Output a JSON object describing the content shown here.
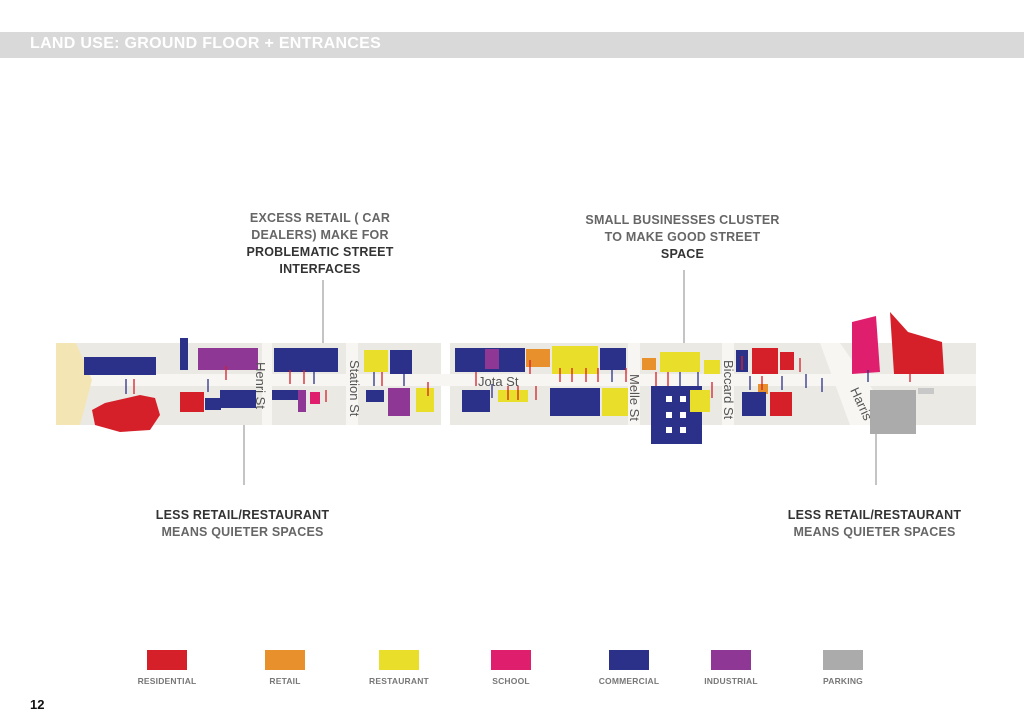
{
  "header": {
    "title": "LAND USE: GROUND FLOOR + ENTRANCES"
  },
  "callouts": {
    "excess_retail": {
      "lines": [
        "EXCESS RETAIL ( CAR",
        "DEALERS) MAKE FOR",
        "PROBLEMATIC STREET",
        "INTERFACES"
      ]
    },
    "small_business": {
      "lines": [
        "SMALL BUSINESSES CLUSTER",
        "TO MAKE GOOD STREET",
        "SPACE"
      ]
    },
    "less_retail_left": {
      "lines": [
        "LESS RETAIL/RESTAURANT",
        "MEANS QUIETER SPACES"
      ]
    },
    "less_retail_right": {
      "lines": [
        "LESS RETAIL/RESTAURANT",
        "MEANS QUIETER SPACES"
      ]
    }
  },
  "map": {
    "streets": {
      "henri": "Henri St",
      "station": "Station St",
      "jota": "Jota St",
      "melle": "Melle St",
      "biccard": "Biccard St",
      "harris": "Harris"
    }
  },
  "legend": [
    {
      "label": "RESIDENTIAL",
      "color": "#d52029"
    },
    {
      "label": "RETAIL",
      "color": "#e8902c"
    },
    {
      "label": "RESTAURANT",
      "color": "#e9df2a"
    },
    {
      "label": "SCHOOL",
      "color": "#e01e6e"
    },
    {
      "label": "COMMERCIAL",
      "color": "#2b3188"
    },
    {
      "label": "INDUSTRIAL",
      "color": "#8f3794"
    },
    {
      "label": "PARKING",
      "color": "#ababab"
    }
  ],
  "page_number": "12"
}
